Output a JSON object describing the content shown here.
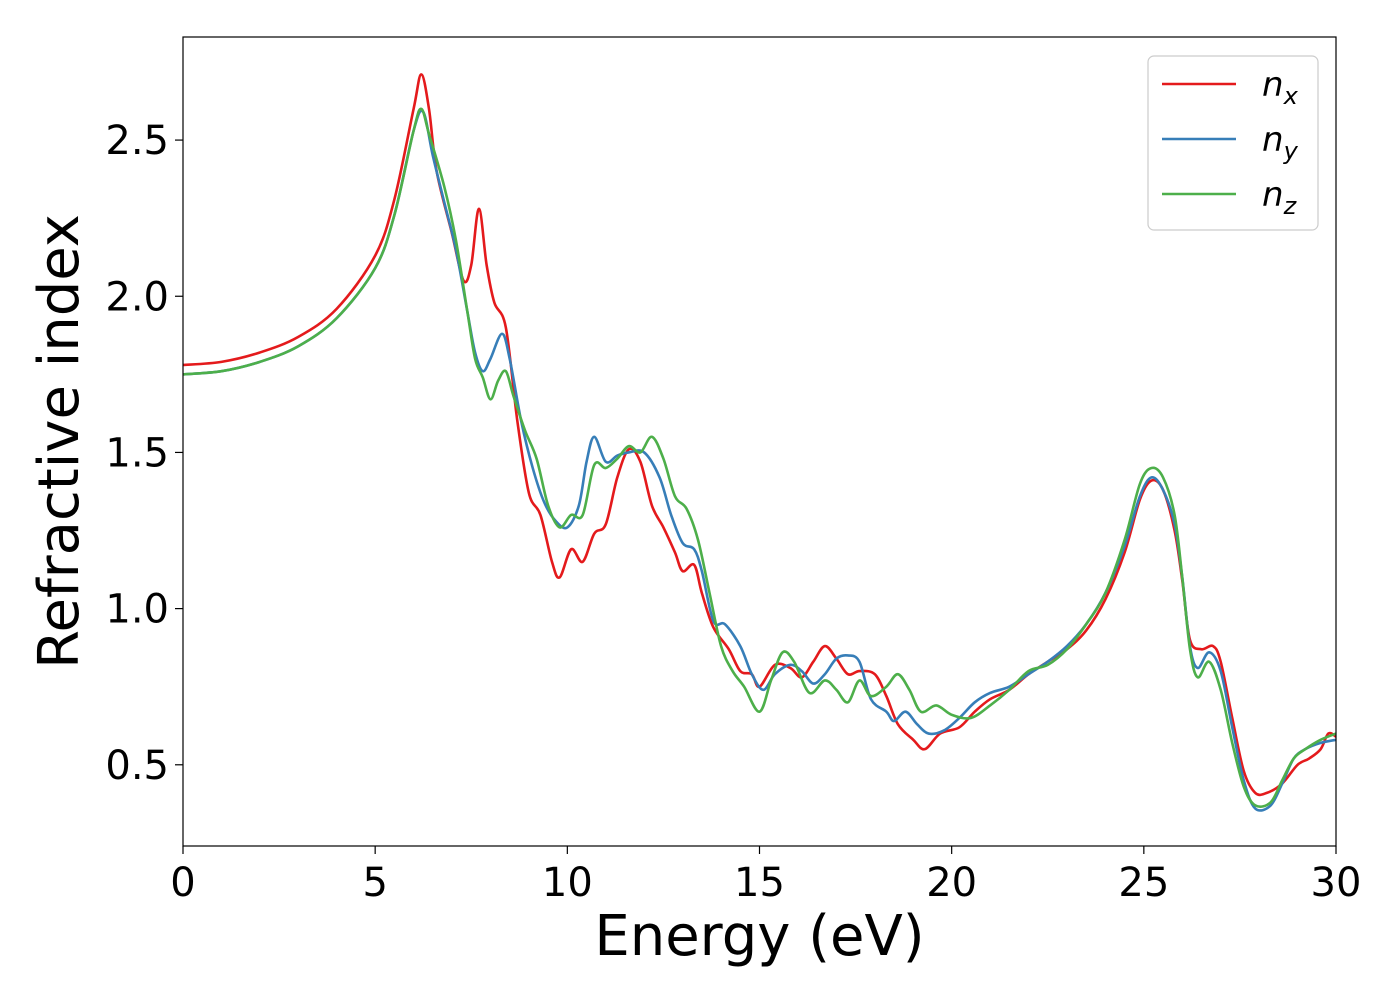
{
  "chart_data": {
    "type": "line",
    "title": "",
    "xlabel": "Energy (eV)",
    "ylabel": "Refractive index",
    "xlim": [
      0,
      30
    ],
    "ylim": [
      0.24,
      2.83
    ],
    "xticks": [
      0,
      5,
      10,
      15,
      20,
      25,
      30
    ],
    "yticks": [
      0.5,
      1.0,
      1.5,
      2.0,
      2.5
    ],
    "xtick_labels": [
      "0",
      "5",
      "10",
      "15",
      "20",
      "25",
      "30"
    ],
    "ytick_labels": [
      "0.5",
      "1.0",
      "1.5",
      "2.0",
      "2.5"
    ],
    "grid": false,
    "legend_position": "top-right",
    "series": [
      {
        "name": "n_x",
        "label_base": "n",
        "label_sub": "x",
        "color": "#e41a1c",
        "points": [
          [
            0,
            1.78
          ],
          [
            1,
            1.79
          ],
          [
            2,
            1.82
          ],
          [
            3,
            1.87
          ],
          [
            4,
            1.96
          ],
          [
            5,
            2.13
          ],
          [
            5.5,
            2.31
          ],
          [
            6,
            2.6
          ],
          [
            6.2,
            2.71
          ],
          [
            6.4,
            2.6
          ],
          [
            6.6,
            2.4
          ],
          [
            7,
            2.2
          ],
          [
            7.3,
            2.05
          ],
          [
            7.5,
            2.1
          ],
          [
            7.7,
            2.28
          ],
          [
            7.9,
            2.1
          ],
          [
            8.1,
            1.98
          ],
          [
            8.4,
            1.9
          ],
          [
            8.7,
            1.6
          ],
          [
            9,
            1.37
          ],
          [
            9.3,
            1.3
          ],
          [
            9.6,
            1.15
          ],
          [
            9.8,
            1.1
          ],
          [
            10.1,
            1.19
          ],
          [
            10.4,
            1.15
          ],
          [
            10.7,
            1.24
          ],
          [
            11,
            1.27
          ],
          [
            11.3,
            1.42
          ],
          [
            11.6,
            1.51
          ],
          [
            11.9,
            1.47
          ],
          [
            12.2,
            1.33
          ],
          [
            12.5,
            1.26
          ],
          [
            12.8,
            1.18
          ],
          [
            13,
            1.12
          ],
          [
            13.3,
            1.14
          ],
          [
            13.5,
            1.05
          ],
          [
            13.8,
            0.94
          ],
          [
            14.2,
            0.87
          ],
          [
            14.5,
            0.8
          ],
          [
            14.8,
            0.79
          ],
          [
            15,
            0.75
          ],
          [
            15.4,
            0.82
          ],
          [
            15.8,
            0.81
          ],
          [
            16.1,
            0.78
          ],
          [
            16.4,
            0.83
          ],
          [
            16.7,
            0.88
          ],
          [
            17,
            0.84
          ],
          [
            17.3,
            0.79
          ],
          [
            17.6,
            0.8
          ],
          [
            18,
            0.79
          ],
          [
            18.3,
            0.72
          ],
          [
            18.6,
            0.63
          ],
          [
            19,
            0.58
          ],
          [
            19.3,
            0.55
          ],
          [
            19.7,
            0.6
          ],
          [
            20.2,
            0.62
          ],
          [
            20.6,
            0.67
          ],
          [
            21,
            0.71
          ],
          [
            21.5,
            0.74
          ],
          [
            22,
            0.79
          ],
          [
            22.5,
            0.83
          ],
          [
            23,
            0.87
          ],
          [
            23.5,
            0.93
          ],
          [
            24,
            1.03
          ],
          [
            24.5,
            1.18
          ],
          [
            24.9,
            1.35
          ],
          [
            25.2,
            1.41
          ],
          [
            25.5,
            1.38
          ],
          [
            25.8,
            1.25
          ],
          [
            26,
            1.09
          ],
          [
            26.2,
            0.9
          ],
          [
            26.5,
            0.87
          ],
          [
            26.8,
            0.88
          ],
          [
            27,
            0.83
          ],
          [
            27.3,
            0.65
          ],
          [
            27.6,
            0.48
          ],
          [
            27.9,
            0.41
          ],
          [
            28.2,
            0.41
          ],
          [
            28.6,
            0.44
          ],
          [
            29,
            0.5
          ],
          [
            29.3,
            0.52
          ],
          [
            29.6,
            0.55
          ],
          [
            29.8,
            0.6
          ],
          [
            30,
            0.59
          ]
        ]
      },
      {
        "name": "n_y",
        "label_base": "n",
        "label_sub": "y",
        "color": "#377eb8",
        "points": [
          [
            0,
            1.75
          ],
          [
            1,
            1.76
          ],
          [
            2,
            1.79
          ],
          [
            3,
            1.84
          ],
          [
            4,
            1.93
          ],
          [
            5,
            2.09
          ],
          [
            5.5,
            2.26
          ],
          [
            6,
            2.53
          ],
          [
            6.25,
            2.59
          ],
          [
            6.5,
            2.45
          ],
          [
            6.8,
            2.3
          ],
          [
            7.1,
            2.15
          ],
          [
            7.4,
            1.95
          ],
          [
            7.6,
            1.82
          ],
          [
            7.8,
            1.76
          ],
          [
            8,
            1.8
          ],
          [
            8.3,
            1.88
          ],
          [
            8.5,
            1.8
          ],
          [
            8.8,
            1.6
          ],
          [
            9.1,
            1.45
          ],
          [
            9.4,
            1.34
          ],
          [
            9.7,
            1.28
          ],
          [
            10,
            1.26
          ],
          [
            10.3,
            1.33
          ],
          [
            10.5,
            1.47
          ],
          [
            10.7,
            1.55
          ],
          [
            11,
            1.47
          ],
          [
            11.3,
            1.49
          ],
          [
            11.6,
            1.5
          ],
          [
            12,
            1.5
          ],
          [
            12.4,
            1.42
          ],
          [
            12.7,
            1.3
          ],
          [
            13,
            1.21
          ],
          [
            13.3,
            1.19
          ],
          [
            13.5,
            1.12
          ],
          [
            13.8,
            0.96
          ],
          [
            14.1,
            0.95
          ],
          [
            14.5,
            0.88
          ],
          [
            14.8,
            0.79
          ],
          [
            15.1,
            0.74
          ],
          [
            15.4,
            0.79
          ],
          [
            15.8,
            0.82
          ],
          [
            16.1,
            0.8
          ],
          [
            16.4,
            0.76
          ],
          [
            16.7,
            0.79
          ],
          [
            17,
            0.84
          ],
          [
            17.3,
            0.85
          ],
          [
            17.6,
            0.83
          ],
          [
            17.9,
            0.71
          ],
          [
            18.3,
            0.67
          ],
          [
            18.5,
            0.64
          ],
          [
            18.8,
            0.67
          ],
          [
            19.1,
            0.63
          ],
          [
            19.4,
            0.6
          ],
          [
            19.8,
            0.61
          ],
          [
            20.2,
            0.65
          ],
          [
            20.6,
            0.7
          ],
          [
            21,
            0.73
          ],
          [
            21.5,
            0.75
          ],
          [
            22,
            0.79
          ],
          [
            22.5,
            0.83
          ],
          [
            23,
            0.88
          ],
          [
            23.5,
            0.95
          ],
          [
            24,
            1.05
          ],
          [
            24.5,
            1.2
          ],
          [
            24.9,
            1.36
          ],
          [
            25.2,
            1.42
          ],
          [
            25.5,
            1.38
          ],
          [
            25.8,
            1.27
          ],
          [
            26,
            1.1
          ],
          [
            26.2,
            0.88
          ],
          [
            26.4,
            0.81
          ],
          [
            26.7,
            0.86
          ],
          [
            27,
            0.8
          ],
          [
            27.3,
            0.62
          ],
          [
            27.6,
            0.45
          ],
          [
            27.9,
            0.36
          ],
          [
            28.3,
            0.37
          ],
          [
            28.6,
            0.44
          ],
          [
            28.9,
            0.52
          ],
          [
            29.2,
            0.55
          ],
          [
            29.6,
            0.57
          ],
          [
            30,
            0.58
          ]
        ]
      },
      {
        "name": "n_z",
        "label_base": "n",
        "label_sub": "z",
        "color": "#4daf4a",
        "points": [
          [
            0,
            1.75
          ],
          [
            1,
            1.76
          ],
          [
            2,
            1.79
          ],
          [
            3,
            1.84
          ],
          [
            4,
            1.93
          ],
          [
            5,
            2.09
          ],
          [
            5.5,
            2.26
          ],
          [
            6,
            2.53
          ],
          [
            6.2,
            2.6
          ],
          [
            6.4,
            2.52
          ],
          [
            6.8,
            2.35
          ],
          [
            7.1,
            2.18
          ],
          [
            7.4,
            1.95
          ],
          [
            7.6,
            1.8
          ],
          [
            7.8,
            1.74
          ],
          [
            8,
            1.67
          ],
          [
            8.2,
            1.73
          ],
          [
            8.4,
            1.76
          ],
          [
            8.6,
            1.68
          ],
          [
            8.9,
            1.57
          ],
          [
            9.2,
            1.48
          ],
          [
            9.5,
            1.33
          ],
          [
            9.8,
            1.26
          ],
          [
            10.1,
            1.3
          ],
          [
            10.4,
            1.3
          ],
          [
            10.7,
            1.46
          ],
          [
            11,
            1.45
          ],
          [
            11.3,
            1.48
          ],
          [
            11.6,
            1.52
          ],
          [
            11.9,
            1.5
          ],
          [
            12.2,
            1.55
          ],
          [
            12.5,
            1.48
          ],
          [
            12.8,
            1.36
          ],
          [
            13.1,
            1.32
          ],
          [
            13.4,
            1.22
          ],
          [
            13.7,
            1.05
          ],
          [
            14,
            0.88
          ],
          [
            14.3,
            0.8
          ],
          [
            14.6,
            0.75
          ],
          [
            15,
            0.67
          ],
          [
            15.3,
            0.77
          ],
          [
            15.6,
            0.86
          ],
          [
            15.9,
            0.83
          ],
          [
            16.3,
            0.73
          ],
          [
            16.7,
            0.77
          ],
          [
            17,
            0.74
          ],
          [
            17.3,
            0.7
          ],
          [
            17.6,
            0.77
          ],
          [
            17.9,
            0.72
          ],
          [
            18.3,
            0.75
          ],
          [
            18.6,
            0.79
          ],
          [
            18.9,
            0.74
          ],
          [
            19.2,
            0.67
          ],
          [
            19.6,
            0.69
          ],
          [
            20,
            0.66
          ],
          [
            20.5,
            0.65
          ],
          [
            21,
            0.69
          ],
          [
            21.5,
            0.74
          ],
          [
            22,
            0.8
          ],
          [
            22.5,
            0.82
          ],
          [
            23,
            0.87
          ],
          [
            23.5,
            0.95
          ],
          [
            24,
            1.05
          ],
          [
            24.5,
            1.22
          ],
          [
            24.9,
            1.4
          ],
          [
            25.2,
            1.45
          ],
          [
            25.5,
            1.42
          ],
          [
            25.8,
            1.3
          ],
          [
            26,
            1.1
          ],
          [
            26.2,
            0.87
          ],
          [
            26.4,
            0.78
          ],
          [
            26.7,
            0.83
          ],
          [
            27,
            0.74
          ],
          [
            27.3,
            0.57
          ],
          [
            27.6,
            0.43
          ],
          [
            27.9,
            0.37
          ],
          [
            28.3,
            0.38
          ],
          [
            28.6,
            0.45
          ],
          [
            28.9,
            0.52
          ],
          [
            29.2,
            0.55
          ],
          [
            29.6,
            0.58
          ],
          [
            30,
            0.6
          ]
        ]
      }
    ]
  }
}
